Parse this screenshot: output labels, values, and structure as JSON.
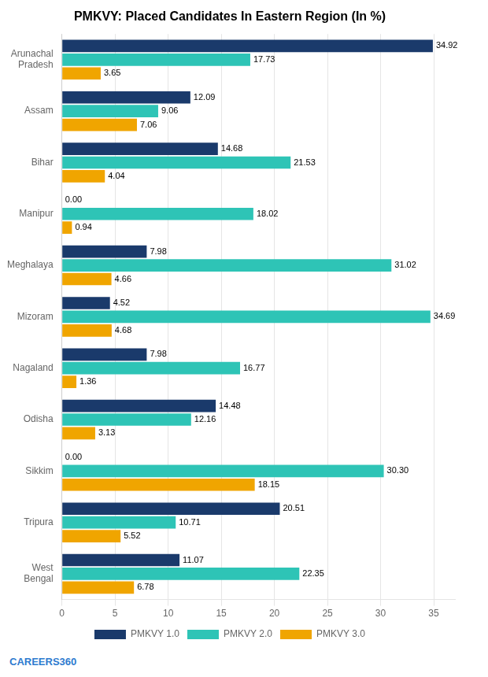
{
  "chart_data": {
    "type": "bar",
    "orientation": "horizontal",
    "title": "PMKVY: Placed Candidates In Eastern Region (In %)",
    "categories": [
      "Arunachal\nPradesh",
      "Assam",
      "Bihar",
      "Manipur",
      "Meghalaya",
      "Mizoram",
      "Nagaland",
      "Odisha",
      "Sikkim",
      "Tripura",
      "West\nBengal"
    ],
    "series": [
      {
        "name": "PMKVY 1.0",
        "color": "#1a3a6b",
        "values": [
          34.92,
          12.09,
          14.68,
          0.0,
          7.98,
          4.52,
          7.98,
          14.48,
          0.0,
          20.51,
          11.07
        ],
        "value_labels": [
          "34.92",
          "12.09",
          "14.68",
          "0.00",
          "7.98",
          "4.52",
          "7.98",
          "14.48",
          "0.00",
          "20.51",
          "11.07"
        ]
      },
      {
        "name": "PMKVY 2.0",
        "color": "#2ec4b6",
        "values": [
          17.73,
          9.06,
          21.53,
          18.02,
          31.02,
          34.69,
          16.77,
          12.16,
          30.3,
          10.71,
          22.35
        ],
        "value_labels": [
          "17.73",
          "9.06",
          "21.53",
          "18.02",
          "31.02",
          "34.69",
          "16.77",
          "12.16",
          "30.30",
          "10.71",
          "22.35"
        ]
      },
      {
        "name": "PMKVY 3.0",
        "color": "#f0a500",
        "values": [
          3.65,
          7.06,
          4.04,
          0.94,
          4.66,
          4.68,
          1.36,
          3.13,
          18.15,
          5.52,
          6.78
        ],
        "value_labels": [
          "3.65",
          "7.06",
          "4.04",
          "0.94",
          "4.66",
          "4.68",
          "1.36",
          "3.13",
          "18.15",
          "5.52",
          "6.78"
        ]
      }
    ],
    "xlim": [
      0,
      37
    ],
    "xticks": [
      0,
      5,
      10,
      15,
      20,
      25,
      30,
      35
    ],
    "grid": true,
    "legend": "bottom",
    "data_labels": true,
    "annotations": [
      "CAREERS360"
    ]
  }
}
